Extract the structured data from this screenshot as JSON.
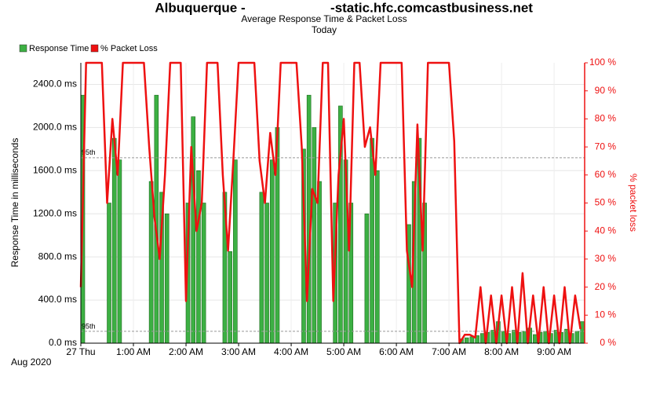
{
  "chart_data": {
    "type": "bar-line",
    "title_parts": [
      "Albuquerque -",
      "-static.hfc.comcastbusiness.net"
    ],
    "subtitle": "Average Response Time & Packet Loss",
    "period": "Today",
    "y_label": "Response Time in milliseconds",
    "y2_label": "% packet loss",
    "x_caption": "Aug 2020",
    "x": [
      0,
      0.1,
      0.2,
      0.3,
      0.4,
      0.5,
      0.6,
      0.7,
      0.8,
      0.9,
      1,
      1.1,
      1.2,
      1.3,
      1.4,
      1.5,
      1.6,
      1.7,
      1.8,
      1.9,
      2,
      2.1,
      2.2,
      2.3,
      2.4,
      2.5,
      2.6,
      2.7,
      2.8,
      2.9,
      3,
      3.1,
      3.2,
      3.3,
      3.4,
      3.5,
      3.6,
      3.7,
      3.8,
      3.9,
      4,
      4.1,
      4.2,
      4.3,
      4.4,
      4.5,
      4.6,
      4.7,
      4.8,
      4.9,
      5,
      5.1,
      5.2,
      5.3,
      5.4,
      5.5,
      5.6,
      5.7,
      5.8,
      5.9,
      6,
      6.1,
      6.2,
      6.3,
      6.4,
      6.5,
      6.6,
      6.7,
      6.8,
      6.9,
      7,
      7.1,
      7.2,
      7.3,
      7.4,
      7.5,
      7.6,
      7.7,
      7.8,
      7.9,
      8,
      8.1,
      8.2,
      8.3,
      8.4,
      8.5,
      8.6,
      8.7,
      8.8,
      8.9,
      9,
      9.1,
      9.2,
      9.3,
      9.4,
      9.5
    ],
    "series": [
      {
        "name": "Response Time",
        "color": "#3cb043",
        "values": [
          2300,
          0,
          0,
          0,
          0,
          1300,
          1900,
          1700,
          0,
          0,
          0,
          0,
          0,
          1500,
          2300,
          1400,
          1200,
          0,
          0,
          0,
          1300,
          2100,
          1600,
          1300,
          0,
          0,
          0,
          1400,
          850,
          1700,
          0,
          0,
          0,
          0,
          1400,
          1300,
          1700,
          2000,
          0,
          0,
          0,
          0,
          1800,
          2300,
          2000,
          1500,
          0,
          0,
          1300,
          2200,
          1700,
          1300,
          0,
          0,
          1200,
          1900,
          1600,
          0,
          0,
          0,
          0,
          0,
          1100,
          1500,
          1900,
          1300,
          0,
          0,
          0,
          0,
          0,
          0,
          40,
          50,
          60,
          70,
          90,
          100,
          120,
          200,
          110,
          90,
          120,
          100,
          110,
          140,
          80,
          100,
          110,
          90,
          120,
          100,
          130,
          90,
          110,
          200
        ]
      },
      {
        "name": "% Packet Loss",
        "color": "#ee1111",
        "axis": "y2",
        "values": [
          20,
          100,
          100,
          100,
          100,
          50,
          80,
          60,
          100,
          100,
          100,
          100,
          100,
          70,
          45,
          30,
          60,
          100,
          100,
          100,
          15,
          70,
          40,
          50,
          100,
          100,
          100,
          60,
          33,
          65,
          100,
          100,
          100,
          100,
          65,
          50,
          75,
          60,
          100,
          100,
          100,
          100,
          70,
          15,
          55,
          50,
          100,
          100,
          15,
          60,
          80,
          33,
          100,
          100,
          70,
          77,
          60,
          100,
          100,
          100,
          100,
          100,
          33,
          20,
          78,
          33,
          100,
          100,
          100,
          100,
          100,
          72,
          0,
          3,
          3,
          2,
          20,
          0,
          17,
          0,
          17,
          0,
          20,
          0,
          25,
          0,
          17,
          0,
          20,
          0,
          17,
          0,
          20,
          0,
          17,
          5
        ]
      }
    ],
    "xlim": [
      0,
      9.58
    ],
    "xticks": [
      {
        "value": 0,
        "label": "27 Thu"
      },
      {
        "value": 1,
        "label": "1:00 AM"
      },
      {
        "value": 2,
        "label": "2:00 AM"
      },
      {
        "value": 3,
        "label": "3:00 AM"
      },
      {
        "value": 4,
        "label": "4:00 AM"
      },
      {
        "value": 5,
        "label": "5:00 AM"
      },
      {
        "value": 6,
        "label": "6:00 AM"
      },
      {
        "value": 7,
        "label": "7:00 AM"
      },
      {
        "value": 8,
        "label": "8:00 AM"
      },
      {
        "value": 9,
        "label": "9:00 AM"
      }
    ],
    "ylim": [
      0,
      2600
    ],
    "yticks": [
      {
        "value": 0,
        "label": "0.0 ms"
      },
      {
        "value": 400,
        "label": "400.0 ms"
      },
      {
        "value": 800,
        "label": "800.0 ms"
      },
      {
        "value": 1200,
        "label": "1200.0 ms"
      },
      {
        "value": 1600,
        "label": "1600.0 ms"
      },
      {
        "value": 2000,
        "label": "2000.0 ms"
      },
      {
        "value": 2400,
        "label": "2400.0 ms"
      }
    ],
    "y2lim": [
      0,
      100
    ],
    "y2ticks": [
      {
        "value": 0,
        "label": "0 %"
      },
      {
        "value": 10,
        "label": "10 %"
      },
      {
        "value": 20,
        "label": "20 %"
      },
      {
        "value": 30,
        "label": "30 %"
      },
      {
        "value": 40,
        "label": "40 %"
      },
      {
        "value": 50,
        "label": "50 %"
      },
      {
        "value": 60,
        "label": "60 %"
      },
      {
        "value": 70,
        "label": "70 %"
      },
      {
        "value": 80,
        "label": "80 %"
      },
      {
        "value": 90,
        "label": "90 %"
      },
      {
        "value": 100,
        "label": "100 %"
      }
    ],
    "reference_lines": [
      {
        "value": 1720,
        "label": "95th"
      },
      {
        "value": 110,
        "label": "95th"
      }
    ],
    "grid": true,
    "legend": "top-left"
  }
}
